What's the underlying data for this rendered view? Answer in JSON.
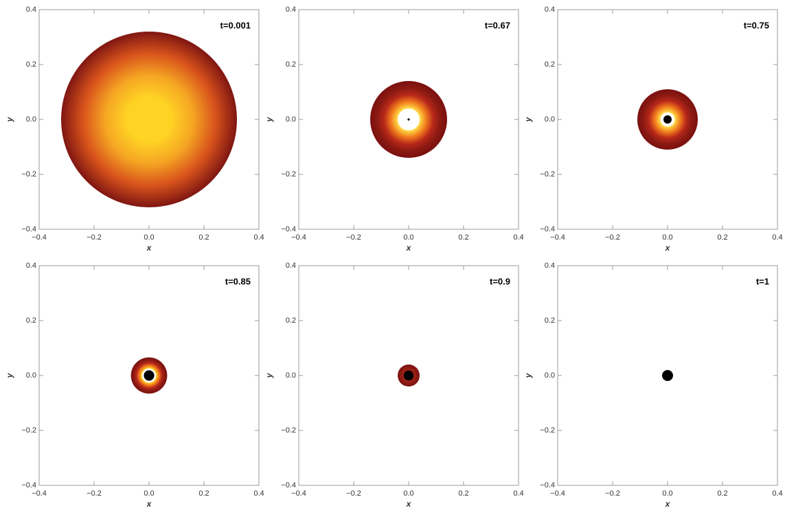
{
  "chart_data": [
    {
      "type": "disk",
      "title": "t=0.001",
      "xlabel": "x",
      "ylabel": "y",
      "xlim": [
        -0.4,
        0.4
      ],
      "ylim": [
        -0.4,
        0.4
      ],
      "xticks": [
        {
          "value": -0.4,
          "label": "−0.4"
        },
        {
          "value": -0.2,
          "label": "−0.2"
        },
        {
          "value": 0,
          "label": "0.0"
        },
        0.2,
        0.4
      ],
      "yticks": [
        {
          "value": -0.4,
          "label": "−0.4"
        },
        {
          "value": -0.2,
          "label": "−0.2"
        },
        {
          "value": 0,
          "label": "0.0"
        },
        0.2,
        0.4
      ],
      "disk_radius": 0.32,
      "hole_radius": null,
      "core_radius": null,
      "colors": [
        "#ffd324",
        "#ffd324",
        "#f5a623",
        "#d9541c",
        "#7f1612"
      ]
    },
    {
      "type": "disk",
      "title": "t=0.67",
      "xlabel": "x",
      "ylabel": "y",
      "xlim": [
        -0.4,
        0.4
      ],
      "ylim": [
        -0.4,
        0.4
      ],
      "xticks": [
        {
          "value": -0.4,
          "label": "−0.4"
        },
        {
          "value": -0.2,
          "label": "−0.2"
        },
        {
          "value": 0,
          "label": "0.0"
        },
        0.2,
        0.4
      ],
      "yticks": [
        {
          "value": -0.4,
          "label": "−0.4"
        },
        {
          "value": -0.2,
          "label": "−0.2"
        },
        {
          "value": 0,
          "label": "0.0"
        },
        0.2,
        0.4
      ],
      "disk_radius": 0.14,
      "hole_radius": 0.04,
      "core_radius": 0.004,
      "colors": [
        "#ffe04a",
        "#f07a1c",
        "#b8281a",
        "#8b1a12",
        "#7a1010"
      ]
    },
    {
      "type": "disk",
      "title": "t=0.75",
      "xlabel": "x",
      "ylabel": "y",
      "xlim": [
        -0.4,
        0.4
      ],
      "ylim": [
        -0.4,
        0.4
      ],
      "xticks": [
        {
          "value": -0.4,
          "label": "−0.4"
        },
        {
          "value": -0.2,
          "label": "−0.2"
        },
        {
          "value": 0,
          "label": "0.0"
        },
        0.2,
        0.4
      ],
      "yticks": [
        {
          "value": -0.4,
          "label": "−0.4"
        },
        {
          "value": -0.2,
          "label": "−0.2"
        },
        {
          "value": 0,
          "label": "0.0"
        },
        0.2,
        0.4
      ],
      "disk_radius": 0.11,
      "hole_radius": 0.026,
      "core_radius": 0.015,
      "colors": [
        "#ffe04a",
        "#f07a1c",
        "#b8281a",
        "#8b1a12",
        "#7a1010"
      ]
    },
    {
      "type": "disk",
      "title": "t=0.85",
      "xlabel": "x",
      "ylabel": "y",
      "xlim": [
        -0.4,
        0.4
      ],
      "ylim": [
        -0.4,
        0.4
      ],
      "xticks": [
        {
          "value": -0.4,
          "label": "−0.4"
        },
        {
          "value": -0.2,
          "label": "−0.2"
        },
        {
          "value": 0,
          "label": "0.0"
        },
        0.2,
        0.4
      ],
      "yticks": [
        {
          "value": -0.4,
          "label": "−0.4"
        },
        {
          "value": -0.2,
          "label": "−0.2"
        },
        {
          "value": 0,
          "label": "0.0"
        },
        0.2,
        0.4
      ],
      "disk_radius": 0.066,
      "hole_radius": 0.026,
      "core_radius": 0.019,
      "colors": [
        "#ffd324",
        "#f07a1c",
        "#b8281a",
        "#8b1a12",
        "#7a1010"
      ]
    },
    {
      "type": "disk",
      "title": "t=0.9",
      "xlabel": "x",
      "ylabel": "y",
      "xlim": [
        -0.4,
        0.4
      ],
      "ylim": [
        -0.4,
        0.4
      ],
      "xticks": [
        {
          "value": -0.4,
          "label": "−0.4"
        },
        {
          "value": -0.2,
          "label": "−0.2"
        },
        {
          "value": 0,
          "label": "0.0"
        },
        0.2,
        0.4
      ],
      "yticks": [
        {
          "value": -0.4,
          "label": "−0.4"
        },
        {
          "value": -0.2,
          "label": "−0.2"
        },
        {
          "value": 0,
          "label": "0.0"
        },
        0.2,
        0.4
      ],
      "disk_radius": 0.04,
      "hole_radius": null,
      "core_radius": 0.018,
      "colors": [
        "#f07a1c",
        "#c0351a",
        "#a02016",
        "#8b1a12",
        "#7a1010"
      ]
    },
    {
      "type": "disk",
      "title": "t=1",
      "xlabel": "x",
      "ylabel": "y",
      "xlim": [
        -0.4,
        0.4
      ],
      "ylim": [
        -0.4,
        0.4
      ],
      "xticks": [
        {
          "value": -0.4,
          "label": "−0.4"
        },
        {
          "value": -0.2,
          "label": "−0.2"
        },
        {
          "value": 0,
          "label": "0.0"
        },
        0.2,
        0.4
      ],
      "yticks": [
        {
          "value": -0.4,
          "label": "−0.4"
        },
        {
          "value": -0.2,
          "label": "−0.2"
        },
        {
          "value": 0,
          "label": "0.0"
        },
        0.2,
        0.4
      ],
      "disk_radius": null,
      "hole_radius": null,
      "core_radius": 0.02,
      "colors": [
        "#ffd324",
        "#f07a1c",
        "#b8281a",
        "#8b1a12",
        "#7a1010"
      ]
    }
  ]
}
